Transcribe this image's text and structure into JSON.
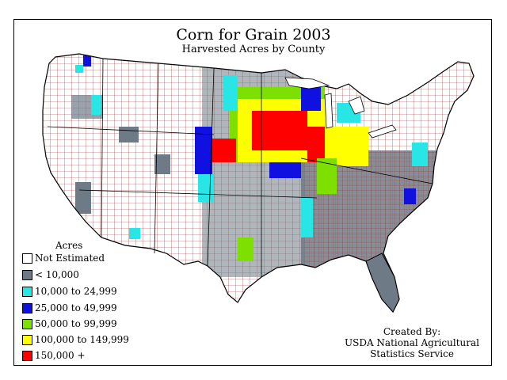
{
  "title": "Corn for Grain 2003",
  "subtitle": "Harvested Acres by County",
  "legend": {
    "title": "Acres",
    "items": [
      {
        "label": "Not Estimated",
        "color": "#ffffff"
      },
      {
        "label": "< 10,000",
        "color": "#6e7b87"
      },
      {
        "label": "10,000 to 24,999",
        "color": "#29e6e6"
      },
      {
        "label": "25,000 to 49,999",
        "color": "#1010e0"
      },
      {
        "label": "50,000 to 99,999",
        "color": "#7ee000"
      },
      {
        "label": "100,000 to 149,999",
        "color": "#ffff00"
      },
      {
        "label": "150,000 +",
        "color": "#ff0000"
      }
    ]
  },
  "credit": {
    "line1": "Created By:",
    "line2": "USDA National Agricultural",
    "line3": "Statistics Service"
  },
  "colors": {
    "county_border": "#8a2a2a",
    "state_border": "#000000"
  }
}
